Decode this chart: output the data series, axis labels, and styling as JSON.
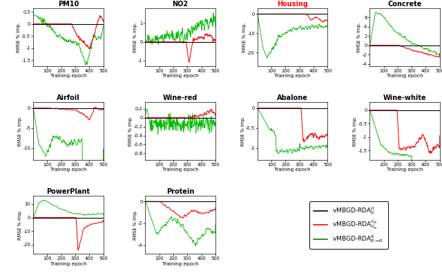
{
  "plots": [
    {
      "name": "PM10",
      "row": 0,
      "col": 0,
      "title_color": "black",
      "ylim": [
        -1.75,
        0.65
      ],
      "yticks": [
        0.5,
        0,
        -0.5,
        -1.0,
        -1.5
      ]
    },
    {
      "name": "NO2",
      "row": 0,
      "col": 1,
      "title_color": "black",
      "ylim": [
        -1.3,
        1.8
      ],
      "yticks": [
        1,
        0,
        -1
      ]
    },
    {
      "name": "Housing",
      "row": 0,
      "col": 2,
      "title_color": "red",
      "ylim": [
        -27,
        3
      ],
      "yticks": [
        0,
        -10,
        -20
      ]
    },
    {
      "name": "Concrete",
      "row": 0,
      "col": 3,
      "title_color": "black",
      "ylim": [
        -4.5,
        8
      ],
      "yticks": [
        6,
        4,
        2,
        0,
        -2,
        -4
      ]
    },
    {
      "name": "Airfoil",
      "row": 1,
      "col": 0,
      "title_color": "black",
      "ylim": [
        -13,
        1.5
      ],
      "yticks": [
        0,
        -5,
        -10
      ]
    },
    {
      "name": "Wine-red",
      "row": 1,
      "col": 1,
      "title_color": "black",
      "ylim": [
        -0.95,
        0.35
      ],
      "yticks": [
        0.2,
        0,
        -0.2,
        -0.4,
        -0.6,
        -0.8
      ]
    },
    {
      "name": "Abalone",
      "row": 1,
      "col": 2,
      "title_color": "black",
      "ylim": [
        -1.3,
        0.15
      ],
      "yticks": [
        0,
        -0.5,
        -1
      ]
    },
    {
      "name": "Wine-white",
      "row": 1,
      "col": 3,
      "title_color": "black",
      "ylim": [
        -1.85,
        0.3
      ],
      "yticks": [
        0,
        -0.5,
        -1,
        -1.5
      ]
    },
    {
      "name": "PowerPlant",
      "row": 2,
      "col": 0,
      "title_color": "black",
      "ylim": [
        -27,
        16
      ],
      "yticks": [
        10,
        0,
        -10,
        -20
      ]
    },
    {
      "name": "Protein",
      "row": 2,
      "col": 1,
      "title_color": "black",
      "ylim": [
        -4.8,
        0.5
      ],
      "yticks": [
        0,
        -2,
        -4
      ]
    }
  ],
  "xlabel": "Training epoch",
  "ylabel": "RMSE % imp.",
  "xticks": [
    100,
    200,
    300,
    400,
    500
  ],
  "legend_labels": [
    "vMBGD-RDA$^G_G$",
    "vMBGD-RDA$^{G_B}_{G_B}$",
    "vMBGD-RDA$^R_{R\\rightarrow R}$"
  ],
  "legend_colors": [
    "black",
    "red",
    "green"
  ]
}
